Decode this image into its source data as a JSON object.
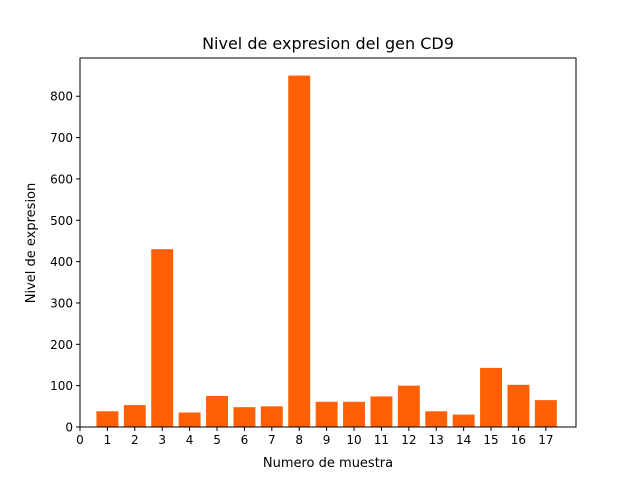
{
  "chart_data": {
    "type": "bar",
    "title": "Nivel de expresion del gen CD9",
    "xlabel": "Numero de muestra",
    "ylabel": "Nivel de expresion",
    "categories": [
      1,
      2,
      3,
      4,
      5,
      6,
      7,
      8,
      9,
      10,
      11,
      12,
      13,
      14,
      15,
      16,
      17
    ],
    "values": [
      38,
      53,
      430,
      35,
      75,
      48,
      50,
      850,
      61,
      61,
      74,
      100,
      38,
      30,
      143,
      102,
      65
    ],
    "x_ticks": [
      "0",
      "1",
      "2",
      "3",
      "4",
      "5",
      "6",
      "7",
      "8",
      "9",
      "10",
      "11",
      "12",
      "13",
      "14",
      "15",
      "16",
      "17"
    ],
    "y_ticks": [
      0,
      100,
      200,
      300,
      400,
      500,
      600,
      700,
      800
    ],
    "xlim": [
      0,
      18.1
    ],
    "ylim": [
      0,
      892.5
    ],
    "bar_color": "#ff5f05",
    "grid": false,
    "legend": "none"
  }
}
